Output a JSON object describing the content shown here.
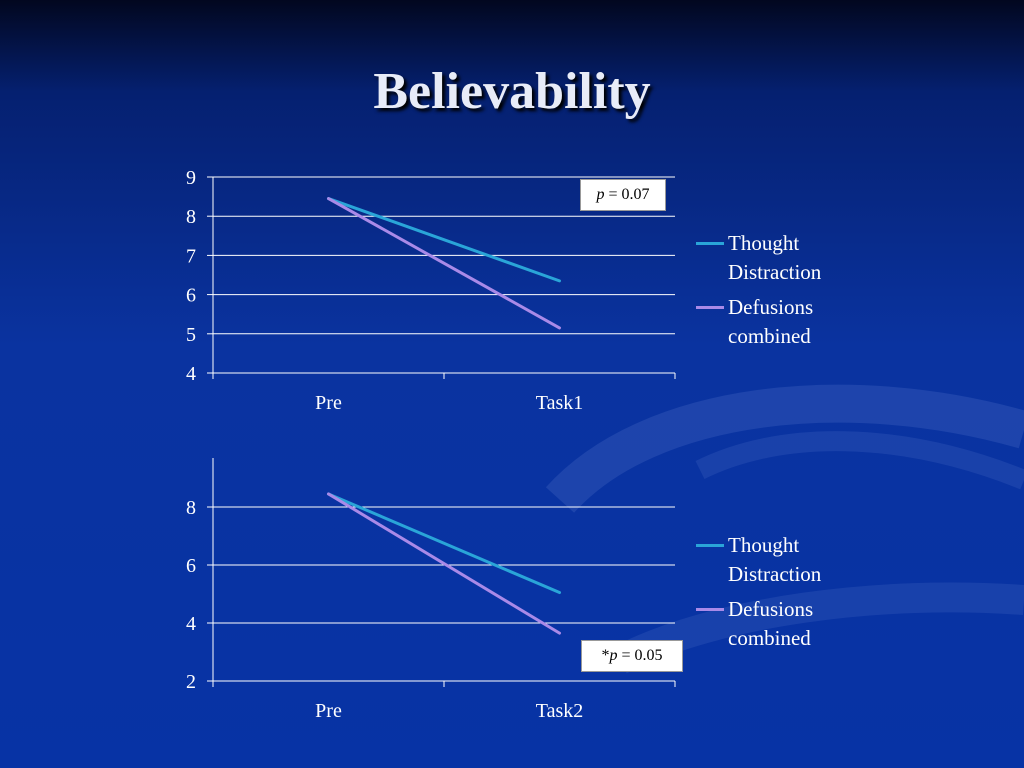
{
  "slide": {
    "title": "Believability"
  },
  "colors": {
    "thought": "#2aa5d8",
    "defusions": "#a98ae8",
    "grid": "#ffffff"
  },
  "chart_data": [
    {
      "type": "line",
      "categories": [
        "Pre",
        "Task1"
      ],
      "ylim": [
        4,
        9
      ],
      "yticks": [
        "4",
        "5",
        "6",
        "7",
        "8",
        "9"
      ],
      "grid": true,
      "legend_position": "right",
      "series": [
        {
          "name": "Thought Distraction",
          "name_lines": [
            "Thought",
            "Distraction"
          ],
          "values": [
            8.45,
            6.35
          ]
        },
        {
          "name": "Defusions combined",
          "name_lines": [
            "Defusions",
            "combined"
          ],
          "values": [
            8.45,
            5.15
          ]
        }
      ],
      "annotation": {
        "prefix": "",
        "p_symbol": "p",
        "text": " = 0.07"
      }
    },
    {
      "type": "line",
      "categories": [
        "Pre",
        "Task2"
      ],
      "ylim": [
        2,
        9
      ],
      "yticks": [
        "2",
        "4",
        "6",
        "8"
      ],
      "grid": true,
      "legend_position": "right",
      "series": [
        {
          "name": "Thought Distraction",
          "name_lines": [
            "Thought",
            "Distraction"
          ],
          "values": [
            8.45,
            5.05
          ]
        },
        {
          "name": "Defusions combined",
          "name_lines": [
            "Defusions",
            "combined"
          ],
          "values": [
            8.45,
            3.65
          ]
        }
      ],
      "annotation": {
        "prefix": "*",
        "p_symbol": "p",
        "text": " = 0.05"
      }
    }
  ]
}
